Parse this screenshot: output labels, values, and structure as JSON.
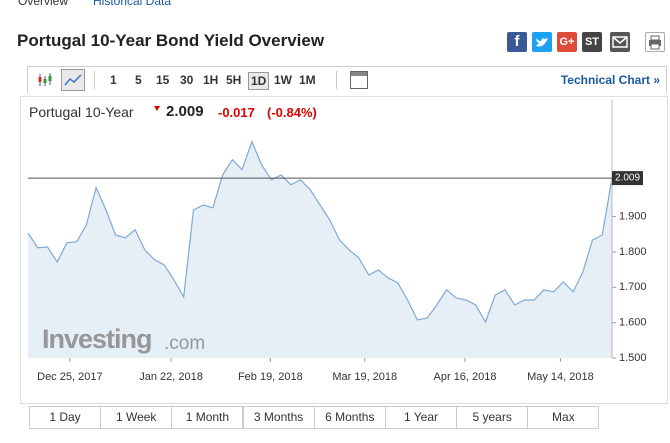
{
  "tabs": [
    "Overview",
    "Historical Data"
  ],
  "title": "Portugal 10-Year Bond Yield Overview",
  "share_buttons": [
    "f",
    "G+",
    "ST"
  ],
  "toolbar": {
    "intervals": [
      "1",
      "5",
      "15",
      "30",
      "1H",
      "5H",
      "1D",
      "1W",
      "1M"
    ],
    "selected": "1D",
    "technical_chart": "Technical Chart »"
  },
  "quote": {
    "name": "Portugal 10-Year",
    "price": "2.009",
    "change": "-0.017",
    "change_pct": "(-0.84%)"
  },
  "watermark": {
    "brand": "Investing",
    "suffix": ".com"
  },
  "ranges": [
    "1 Day",
    "1 Week",
    "1 Month",
    "3 Months",
    "6 Months",
    "1 Year",
    "5 years",
    "Max"
  ],
  "chart_data": {
    "type": "area",
    "color": "#7fa9d6",
    "values": [
      1.854,
      1.812,
      1.814,
      1.772,
      1.826,
      1.829,
      1.877,
      1.982,
      1.919,
      1.848,
      1.84,
      1.863,
      1.806,
      1.778,
      1.763,
      1.721,
      1.673,
      1.919,
      1.933,
      1.925,
      2.018,
      2.061,
      2.033,
      2.112,
      2.047,
      2.004,
      2.018,
      1.99,
      2.004,
      1.976,
      1.933,
      1.891,
      1.834,
      1.806,
      1.783,
      1.735,
      1.749,
      1.727,
      1.712,
      1.664,
      1.608,
      1.613,
      1.65,
      1.693,
      1.67,
      1.664,
      1.65,
      1.602,
      1.678,
      1.693,
      1.65,
      1.664,
      1.664,
      1.693,
      1.687,
      1.715,
      1.687,
      1.743,
      1.834,
      1.848,
      2.009
    ],
    "xlim": [
      0,
      60
    ],
    "xticks": [
      {
        "value": 4.3,
        "label": "Dec 25, 2017"
      },
      {
        "value": 14.7,
        "label": "Jan 22, 2018"
      },
      {
        "value": 24.9,
        "label": "Feb 19, 2018"
      },
      {
        "value": 34.6,
        "label": "Mar 19, 2018"
      },
      {
        "value": 44.9,
        "label": "Apr 16, 2018"
      },
      {
        "value": 54.7,
        "label": "May 14, 2018"
      }
    ],
    "ylim": [
      1.5,
      2.23
    ],
    "yticks": [
      {
        "value": 1.5,
        "label": "1.500"
      },
      {
        "value": 1.6,
        "label": "1.600"
      },
      {
        "value": 1.7,
        "label": "1.700"
      },
      {
        "value": 1.8,
        "label": "1.800"
      },
      {
        "value": 1.9,
        "label": "1.900"
      }
    ],
    "price_line": {
      "value": 2.009,
      "label": "2.009"
    }
  }
}
